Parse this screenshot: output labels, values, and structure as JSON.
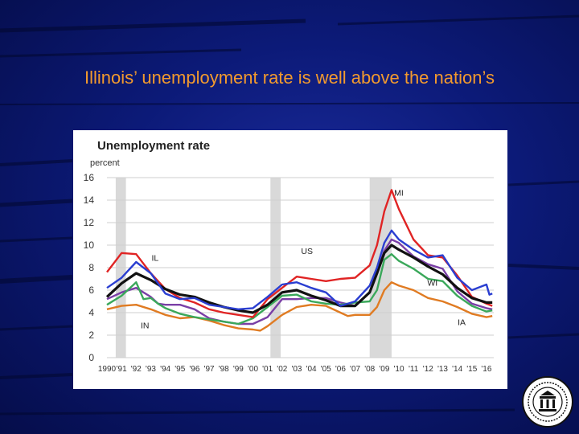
{
  "slide": {
    "title": "Illinois’ unemployment rate is well above the nation’s",
    "background": "#0c1a78",
    "title_color": "#f29a2e"
  },
  "seal": {
    "icon": "federal-reserve-seal-icon"
  },
  "chart_data": {
    "type": "line",
    "title": "Unemployment rate",
    "ylabel": "percent",
    "xlabel": "",
    "xlim": [
      1990,
      2016.5
    ],
    "ylim": [
      0,
      16
    ],
    "yticks": [
      "0",
      "2",
      "4",
      "6",
      "8",
      "10",
      "12",
      "14",
      "16"
    ],
    "xticks": [
      {
        "year": 1990,
        "label": "1990"
      },
      {
        "year": 1991,
        "label": "'91"
      },
      {
        "year": 1992,
        "label": "'92"
      },
      {
        "year": 1993,
        "label": "'93"
      },
      {
        "year": 1994,
        "label": "'94"
      },
      {
        "year": 1995,
        "label": "'95"
      },
      {
        "year": 1996,
        "label": "'96"
      },
      {
        "year": 1997,
        "label": "'97"
      },
      {
        "year": 1998,
        "label": "'98"
      },
      {
        "year": 1999,
        "label": "'99"
      },
      {
        "year": 2000,
        "label": "'00"
      },
      {
        "year": 2001,
        "label": "'01"
      },
      {
        "year": 2002,
        "label": "'02"
      },
      {
        "year": 2003,
        "label": "'03"
      },
      {
        "year": 2004,
        "label": "'04"
      },
      {
        "year": 2005,
        "label": "'05"
      },
      {
        "year": 2006,
        "label": "'06"
      },
      {
        "year": 2007,
        "label": "'07"
      },
      {
        "year": 2008,
        "label": "'08"
      },
      {
        "year": 2009,
        "label": "'09"
      },
      {
        "year": 2010,
        "label": "'10"
      },
      {
        "year": 2011,
        "label": "'11"
      },
      {
        "year": 2012,
        "label": "'12"
      },
      {
        "year": 2013,
        "label": "'13"
      },
      {
        "year": 2014,
        "label": "'14"
      },
      {
        "year": 2015,
        "label": "'15"
      },
      {
        "year": 2016,
        "label": "'16"
      }
    ],
    "grid": true,
    "recessions": [
      {
        "start": 1990.6,
        "end": 1991.3
      },
      {
        "start": 2001.2,
        "end": 2001.9
      },
      {
        "start": 2008.0,
        "end": 2009.5
      }
    ],
    "series": [
      {
        "name": "IA",
        "color": "#e07b22",
        "points": [
          [
            1990,
            4.3
          ],
          [
            1991,
            4.6
          ],
          [
            1992,
            4.7
          ],
          [
            1993,
            4.3
          ],
          [
            1994,
            3.8
          ],
          [
            1995,
            3.5
          ],
          [
            1996,
            3.6
          ],
          [
            1997,
            3.3
          ],
          [
            1998,
            2.9
          ],
          [
            1999,
            2.6
          ],
          [
            2000,
            2.5
          ],
          [
            2000.5,
            2.4
          ],
          [
            2001,
            2.8
          ],
          [
            2002,
            3.8
          ],
          [
            2003,
            4.5
          ],
          [
            2004,
            4.7
          ],
          [
            2005,
            4.6
          ],
          [
            2006,
            4.0
          ],
          [
            2006.5,
            3.7
          ],
          [
            2007,
            3.8
          ],
          [
            2008,
            3.8
          ],
          [
            2008.5,
            4.5
          ],
          [
            2009,
            6.0
          ],
          [
            2009.5,
            6.7
          ],
          [
            2010,
            6.4
          ],
          [
            2011,
            6.0
          ],
          [
            2012,
            5.3
          ],
          [
            2013,
            5.0
          ],
          [
            2014,
            4.5
          ],
          [
            2015,
            3.9
          ],
          [
            2016,
            3.6
          ],
          [
            2016.4,
            3.7
          ]
        ]
      },
      {
        "name": "IN",
        "color": "#7a3fa6",
        "points": [
          [
            1990,
            5.2
          ],
          [
            1991,
            5.8
          ],
          [
            1992,
            6.2
          ],
          [
            1993,
            5.4
          ],
          [
            1993.5,
            4.8
          ],
          [
            1994,
            4.7
          ],
          [
            1995,
            4.7
          ],
          [
            1996,
            4.3
          ],
          [
            1997,
            3.5
          ],
          [
            1998,
            3.2
          ],
          [
            1999,
            3.0
          ],
          [
            2000,
            3.0
          ],
          [
            2001,
            3.6
          ],
          [
            2002,
            5.2
          ],
          [
            2003,
            5.2
          ],
          [
            2004,
            5.3
          ],
          [
            2005,
            5.3
          ],
          [
            2006,
            4.9
          ],
          [
            2007,
            4.6
          ],
          [
            2008,
            5.8
          ],
          [
            2009,
            9.5
          ],
          [
            2009.5,
            10.5
          ],
          [
            2010,
            10.2
          ],
          [
            2011,
            9.0
          ],
          [
            2012,
            8.3
          ],
          [
            2013,
            7.9
          ],
          [
            2014,
            5.9
          ],
          [
            2015,
            4.8
          ],
          [
            2016,
            4.4
          ],
          [
            2016.4,
            4.3
          ]
        ]
      },
      {
        "name": "WI",
        "color": "#3aa85a",
        "points": [
          [
            1990,
            4.7
          ],
          [
            1991,
            5.5
          ],
          [
            1992,
            6.7
          ],
          [
            1992.5,
            5.2
          ],
          [
            1993,
            5.3
          ],
          [
            1993.5,
            4.8
          ],
          [
            1994,
            4.4
          ],
          [
            1995,
            3.9
          ],
          [
            1996,
            3.6
          ],
          [
            1997,
            3.4
          ],
          [
            1998,
            3.2
          ],
          [
            1999,
            3.0
          ],
          [
            2000,
            3.5
          ],
          [
            2001,
            4.5
          ],
          [
            2002,
            5.5
          ],
          [
            2003,
            5.6
          ],
          [
            2004,
            5.0
          ],
          [
            2005,
            4.8
          ],
          [
            2006,
            4.7
          ],
          [
            2007,
            4.9
          ],
          [
            2008,
            5.0
          ],
          [
            2008.5,
            6.0
          ],
          [
            2009,
            8.7
          ],
          [
            2009.5,
            9.2
          ],
          [
            2010,
            8.6
          ],
          [
            2011,
            7.9
          ],
          [
            2012,
            7.0
          ],
          [
            2013,
            6.8
          ],
          [
            2014,
            5.5
          ],
          [
            2015,
            4.6
          ],
          [
            2016,
            4.1
          ],
          [
            2016.4,
            4.2
          ]
        ]
      },
      {
        "name": "MI",
        "color": "#e02424",
        "points": [
          [
            1990,
            7.6
          ],
          [
            1991,
            9.3
          ],
          [
            1992,
            9.2
          ],
          [
            1993,
            7.5
          ],
          [
            1994,
            6.1
          ],
          [
            1995,
            5.3
          ],
          [
            1996,
            4.9
          ],
          [
            1997,
            4.3
          ],
          [
            1998,
            4.0
          ],
          [
            1999,
            3.8
          ],
          [
            2000,
            3.6
          ],
          [
            2001,
            5.2
          ],
          [
            2002,
            6.2
          ],
          [
            2003,
            7.2
          ],
          [
            2004,
            7.0
          ],
          [
            2005,
            6.8
          ],
          [
            2006,
            7.0
          ],
          [
            2007,
            7.1
          ],
          [
            2008,
            8.2
          ],
          [
            2008.5,
            10.0
          ],
          [
            2009,
            13.0
          ],
          [
            2009.5,
            14.9
          ],
          [
            2010,
            13.2
          ],
          [
            2011,
            10.5
          ],
          [
            2012,
            9.1
          ],
          [
            2013,
            8.9
          ],
          [
            2014,
            7.3
          ],
          [
            2015,
            5.4
          ],
          [
            2016,
            4.8
          ],
          [
            2016.4,
            4.6
          ]
        ]
      },
      {
        "name": "US",
        "color": "#111111",
        "points": [
          [
            1990,
            5.4
          ],
          [
            1991,
            6.6
          ],
          [
            1992,
            7.5
          ],
          [
            1993,
            6.9
          ],
          [
            1994,
            6.1
          ],
          [
            1995,
            5.6
          ],
          [
            1996,
            5.4
          ],
          [
            1997,
            4.9
          ],
          [
            1998,
            4.5
          ],
          [
            1999,
            4.2
          ],
          [
            2000,
            4.0
          ],
          [
            2001,
            4.7
          ],
          [
            2002,
            5.8
          ],
          [
            2003,
            6.0
          ],
          [
            2004,
            5.5
          ],
          [
            2005,
            5.1
          ],
          [
            2006,
            4.6
          ],
          [
            2007,
            4.6
          ],
          [
            2008,
            5.8
          ],
          [
            2008.5,
            7.5
          ],
          [
            2009,
            9.3
          ],
          [
            2009.5,
            10.0
          ],
          [
            2010,
            9.6
          ],
          [
            2011,
            8.9
          ],
          [
            2012,
            8.1
          ],
          [
            2013,
            7.4
          ],
          [
            2014,
            6.2
          ],
          [
            2015,
            5.3
          ],
          [
            2016,
            4.9
          ],
          [
            2016.4,
            4.9
          ]
        ]
      },
      {
        "name": "IL",
        "color": "#2a3ed1",
        "points": [
          [
            1990,
            6.2
          ],
          [
            1991,
            7.1
          ],
          [
            1992,
            8.5
          ],
          [
            1993,
            7.5
          ],
          [
            1994,
            5.7
          ],
          [
            1995,
            5.2
          ],
          [
            1996,
            5.3
          ],
          [
            1997,
            4.7
          ],
          [
            1998,
            4.5
          ],
          [
            1999,
            4.3
          ],
          [
            2000,
            4.4
          ],
          [
            2001,
            5.4
          ],
          [
            2002,
            6.5
          ],
          [
            2003,
            6.7
          ],
          [
            2004,
            6.2
          ],
          [
            2005,
            5.8
          ],
          [
            2006,
            4.6
          ],
          [
            2007,
            5.0
          ],
          [
            2008,
            6.4
          ],
          [
            2008.5,
            8.0
          ],
          [
            2009,
            10.2
          ],
          [
            2009.5,
            11.3
          ],
          [
            2010,
            10.5
          ],
          [
            2011,
            9.6
          ],
          [
            2012,
            8.9
          ],
          [
            2013,
            9.1
          ],
          [
            2014,
            7.1
          ],
          [
            2015,
            6.0
          ],
          [
            2016,
            6.5
          ],
          [
            2016.2,
            5.6
          ],
          [
            2016.4,
            5.7
          ]
        ]
      }
    ],
    "annotations": [
      {
        "text": "MI",
        "x": 2010.0,
        "y": 14.4
      },
      {
        "text": "IL",
        "x": 1993.3,
        "y": 8.6
      },
      {
        "text": "US",
        "x": 2003.7,
        "y": 9.2
      },
      {
        "text": "WI",
        "x": 2012.3,
        "y": 6.4
      },
      {
        "text": "IN",
        "x": 1992.6,
        "y": 2.6
      },
      {
        "text": "IA",
        "x": 2014.3,
        "y": 2.9
      }
    ]
  }
}
